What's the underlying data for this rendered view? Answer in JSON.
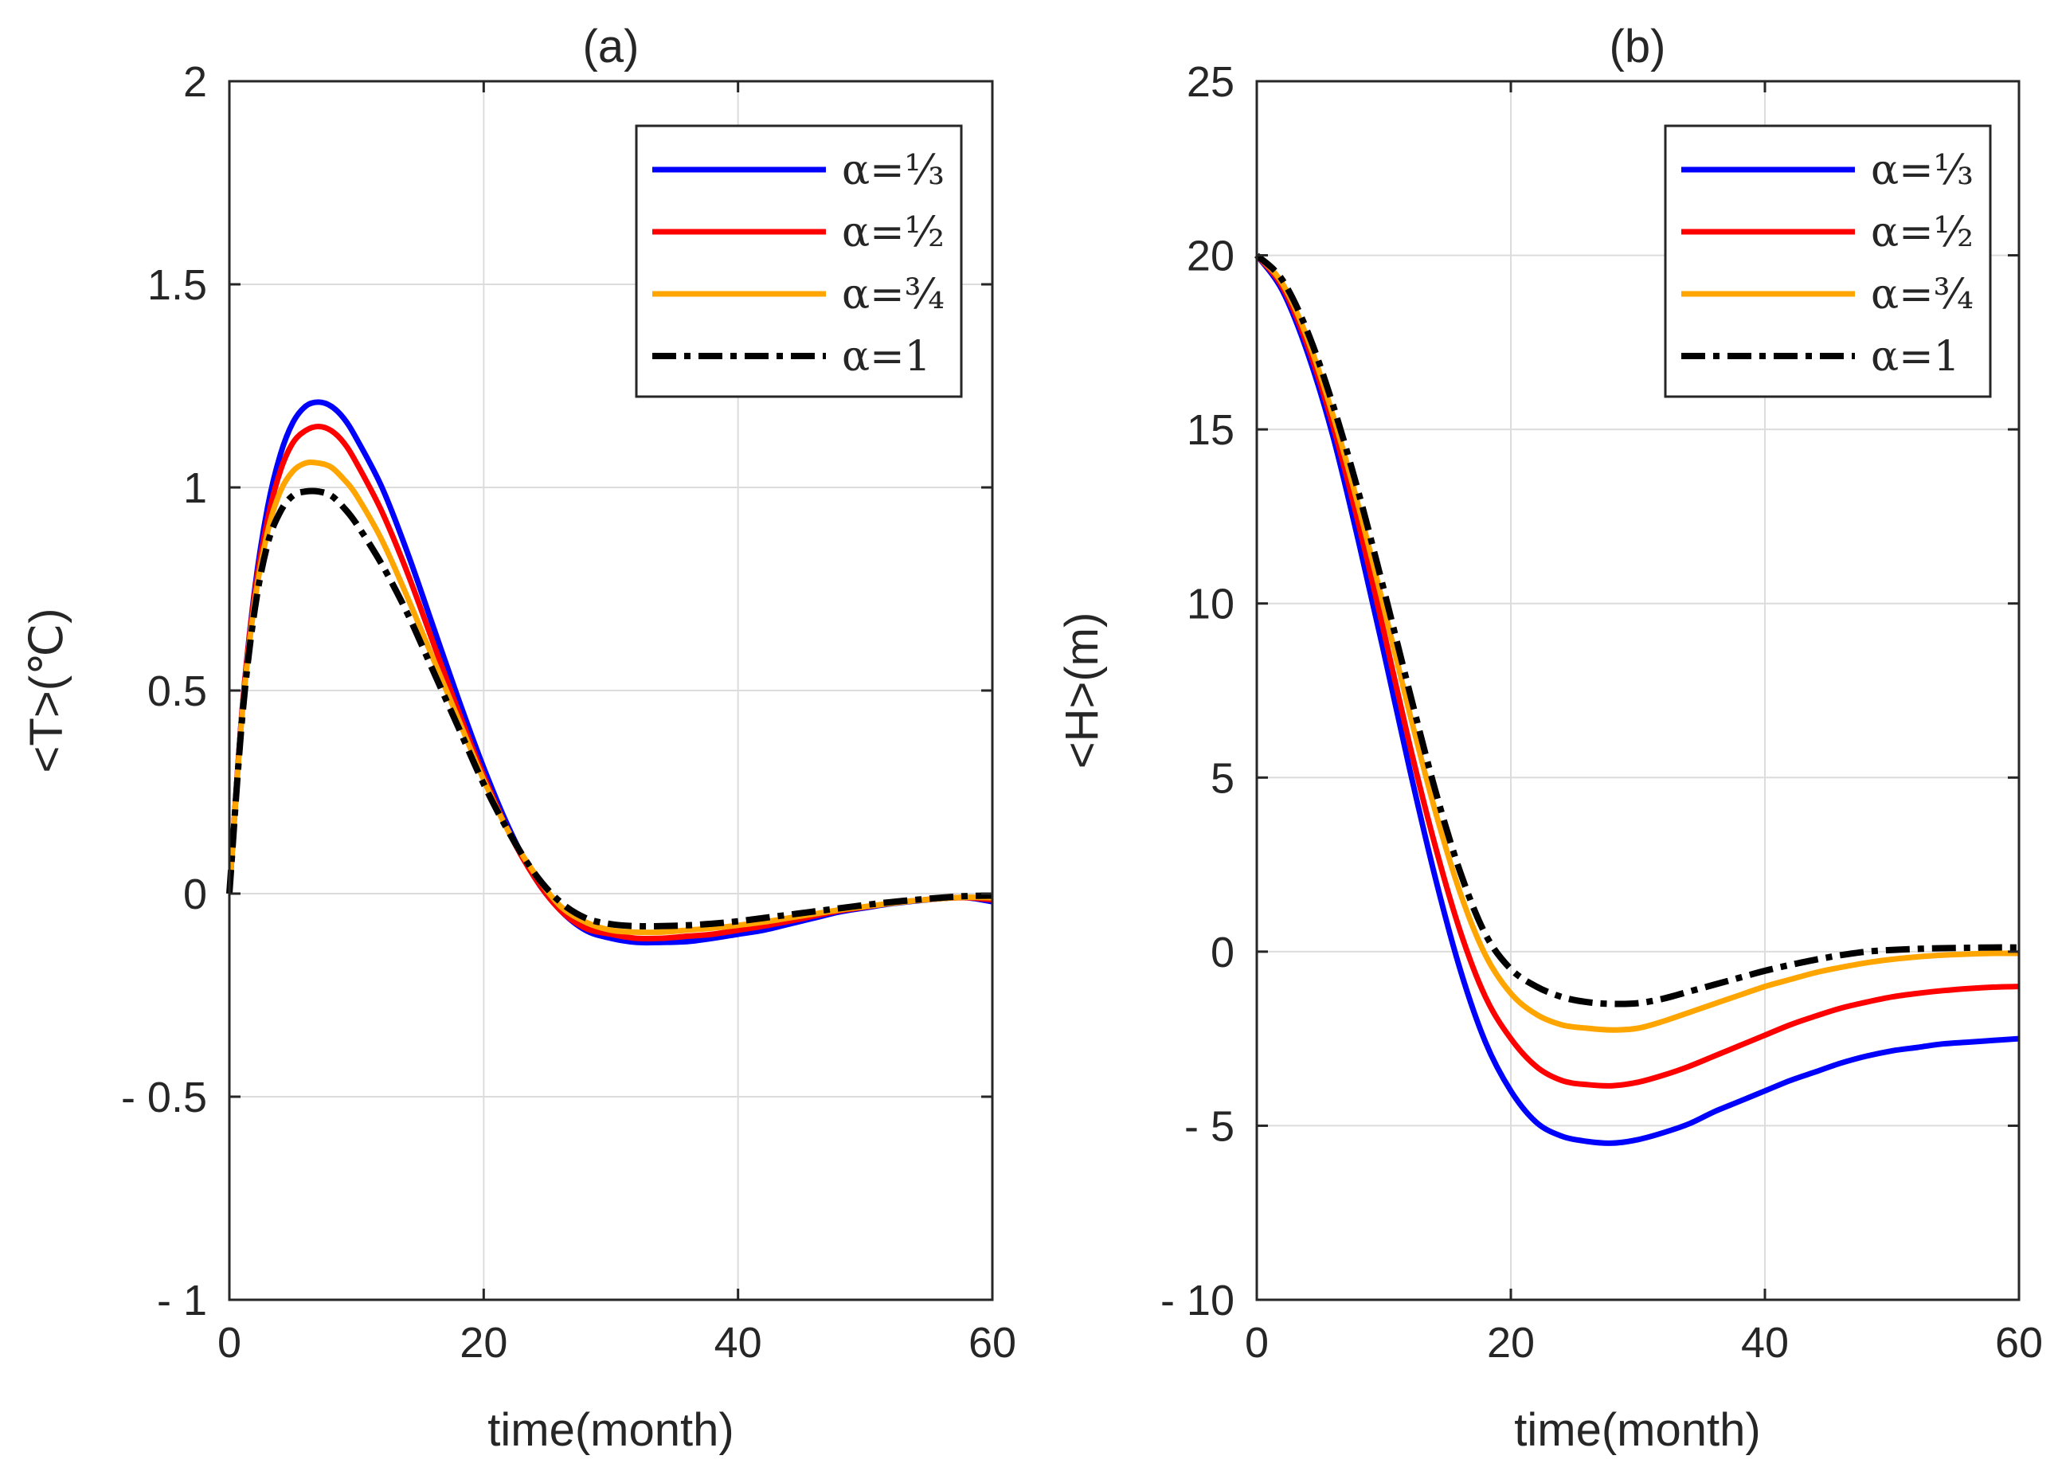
{
  "chart_data": [
    {
      "type": "line",
      "panel": "(a)",
      "title": "(a)",
      "xlabel": "time(month)",
      "ylabel": "<T>(℃)",
      "xlim": [
        0,
        60
      ],
      "ylim": [
        -1,
        2
      ],
      "xticks": [
        0,
        20,
        40,
        60
      ],
      "xtick_labels": [
        "0",
        "20",
        "40",
        "60"
      ],
      "yticks": [
        -1,
        -0.5,
        0,
        0.5,
        1,
        1.5,
        2
      ],
      "ytick_labels": [
        "- 1",
        "- 0.5",
        "0",
        "0.5",
        "1",
        "1.5",
        "2"
      ],
      "grid": true,
      "legend_position": "top-right",
      "x": [
        0,
        1,
        2,
        3,
        4,
        5,
        6,
        7,
        8,
        9,
        10,
        12,
        14,
        16,
        18,
        20,
        22,
        24,
        26,
        28,
        30,
        32,
        34,
        36,
        38,
        40,
        42,
        44,
        46,
        48,
        50,
        52,
        54,
        56,
        58,
        60
      ],
      "series": [
        {
          "name": "α=⅓",
          "color": "#0000ff",
          "dashed": false,
          "values": [
            0,
            0.45,
            0.75,
            0.95,
            1.08,
            1.16,
            1.2,
            1.21,
            1.2,
            1.17,
            1.12,
            1.0,
            0.84,
            0.66,
            0.48,
            0.31,
            0.16,
            0.04,
            -0.04,
            -0.09,
            -0.11,
            -0.12,
            -0.12,
            -0.118,
            -0.11,
            -0.1,
            -0.09,
            -0.075,
            -0.06,
            -0.045,
            -0.035,
            -0.025,
            -0.018,
            -0.012,
            -0.01,
            -0.02
          ]
        },
        {
          "name": "α=½",
          "color": "#ff0000",
          "dashed": false,
          "values": [
            0,
            0.45,
            0.74,
            0.92,
            1.04,
            1.11,
            1.14,
            1.15,
            1.14,
            1.11,
            1.06,
            0.94,
            0.79,
            0.62,
            0.45,
            0.29,
            0.15,
            0.04,
            -0.04,
            -0.085,
            -0.1,
            -0.11,
            -0.11,
            -0.105,
            -0.1,
            -0.09,
            -0.08,
            -0.068,
            -0.055,
            -0.042,
            -0.033,
            -0.024,
            -0.017,
            -0.012,
            -0.01,
            -0.015
          ]
        },
        {
          "name": "α=¾",
          "color": "#ffa500",
          "dashed": false,
          "values": [
            0,
            0.44,
            0.72,
            0.89,
            0.99,
            1.04,
            1.06,
            1.06,
            1.05,
            1.02,
            0.98,
            0.87,
            0.73,
            0.58,
            0.43,
            0.28,
            0.15,
            0.05,
            -0.03,
            -0.07,
            -0.09,
            -0.095,
            -0.095,
            -0.09,
            -0.085,
            -0.078,
            -0.07,
            -0.06,
            -0.05,
            -0.04,
            -0.032,
            -0.024,
            -0.017,
            -0.012,
            -0.009,
            -0.01
          ]
        },
        {
          "name": "α=1",
          "color": "#000000",
          "dashed": true,
          "values": [
            0,
            0.43,
            0.7,
            0.86,
            0.94,
            0.98,
            0.99,
            0.99,
            0.98,
            0.95,
            0.91,
            0.81,
            0.69,
            0.55,
            0.41,
            0.27,
            0.15,
            0.05,
            -0.02,
            -0.06,
            -0.075,
            -0.08,
            -0.08,
            -0.078,
            -0.074,
            -0.068,
            -0.06,
            -0.052,
            -0.044,
            -0.036,
            -0.028,
            -0.021,
            -0.015,
            -0.01,
            -0.006,
            -0.005
          ]
        }
      ]
    },
    {
      "type": "line",
      "panel": "(b)",
      "title": "(b)",
      "xlabel": "time(month)",
      "ylabel": "<H>(m)",
      "xlim": [
        0,
        60
      ],
      "ylim": [
        -10,
        25
      ],
      "xticks": [
        0,
        20,
        40,
        60
      ],
      "xtick_labels": [
        "0",
        "20",
        "40",
        "60"
      ],
      "yticks": [
        -10,
        -5,
        0,
        5,
        10,
        15,
        20,
        25
      ],
      "ytick_labels": [
        "- 10",
        "- 5",
        "0",
        "5",
        "10",
        "15",
        "20",
        "25"
      ],
      "grid": true,
      "legend_position": "top-right",
      "x": [
        0,
        2,
        4,
        6,
        8,
        10,
        12,
        14,
        16,
        18,
        20,
        22,
        24,
        26,
        28,
        30,
        32,
        34,
        36,
        38,
        40,
        42,
        44,
        46,
        48,
        50,
        52,
        54,
        56,
        58,
        60
      ],
      "series": [
        {
          "name": "α=⅓",
          "color": "#0000ff",
          "dashed": false,
          "values": [
            20,
            19.0,
            17.2,
            14.8,
            11.8,
            8.6,
            5.3,
            2.2,
            -0.5,
            -2.6,
            -4.0,
            -4.9,
            -5.3,
            -5.45,
            -5.5,
            -5.4,
            -5.2,
            -4.95,
            -4.6,
            -4.3,
            -4.0,
            -3.7,
            -3.45,
            -3.2,
            -3.0,
            -2.85,
            -2.75,
            -2.65,
            -2.6,
            -2.55,
            -2.5
          ]
        },
        {
          "name": "α=½",
          "color": "#ff0000",
          "dashed": false,
          "values": [
            20,
            19.1,
            17.4,
            15.1,
            12.3,
            9.2,
            6.0,
            3.1,
            0.6,
            -1.3,
            -2.5,
            -3.3,
            -3.7,
            -3.82,
            -3.85,
            -3.75,
            -3.55,
            -3.3,
            -3.0,
            -2.7,
            -2.4,
            -2.1,
            -1.85,
            -1.62,
            -1.45,
            -1.3,
            -1.2,
            -1.12,
            -1.06,
            -1.02,
            -1.0
          ]
        },
        {
          "name": "α=¾",
          "color": "#ffa500",
          "dashed": false,
          "values": [
            20,
            19.2,
            17.6,
            15.4,
            12.8,
            9.9,
            6.9,
            4.1,
            1.7,
            -0.1,
            -1.2,
            -1.8,
            -2.1,
            -2.2,
            -2.25,
            -2.2,
            -2.0,
            -1.75,
            -1.5,
            -1.25,
            -1.0,
            -0.8,
            -0.6,
            -0.45,
            -0.32,
            -0.22,
            -0.15,
            -0.1,
            -0.07,
            -0.05,
            -0.05
          ]
        },
        {
          "name": "α=1",
          "color": "#000000",
          "dashed": true,
          "values": [
            20,
            19.3,
            17.8,
            15.7,
            13.2,
            10.4,
            7.5,
            4.7,
            2.3,
            0.5,
            -0.5,
            -1.0,
            -1.3,
            -1.45,
            -1.5,
            -1.48,
            -1.35,
            -1.15,
            -0.95,
            -0.75,
            -0.55,
            -0.38,
            -0.23,
            -0.1,
            0.0,
            0.05,
            0.08,
            0.1,
            0.11,
            0.12,
            0.12
          ]
        }
      ]
    }
  ]
}
